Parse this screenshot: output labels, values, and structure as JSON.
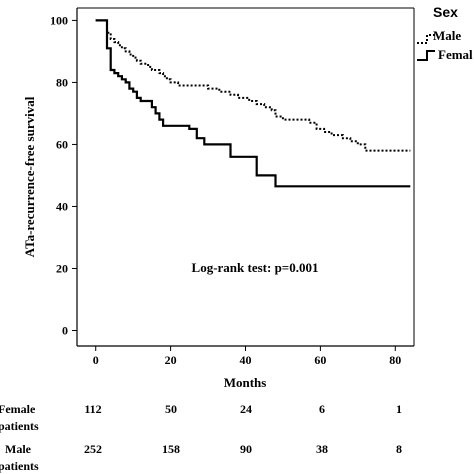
{
  "chart_data": {
    "type": "line",
    "subtype": "kaplan-meier survival curve",
    "xlabel": "Months",
    "ylabel": "ATa-recurrence-free survival",
    "xlim": [
      -5,
      85
    ],
    "ylim": [
      -5,
      104
    ],
    "xticks": [
      "0",
      "20",
      "40",
      "60",
      "80"
    ],
    "yticks": [
      "0",
      "20",
      "40",
      "60",
      "80",
      "100"
    ],
    "annotation": "Log-rank test: p=0.001",
    "legend": {
      "title": "Sex",
      "placement": "top-right outside plot area",
      "entries": [
        "Male",
        "Femal"
      ]
    },
    "series": [
      {
        "name": "Male",
        "style": "dotted",
        "color": "#000000",
        "points": [
          [
            0,
            100
          ],
          [
            3,
            100
          ],
          [
            3,
            96
          ],
          [
            4,
            96
          ],
          [
            4,
            94
          ],
          [
            5,
            94
          ],
          [
            5,
            93
          ],
          [
            6,
            93
          ],
          [
            6,
            92
          ],
          [
            7,
            92
          ],
          [
            7,
            91
          ],
          [
            8,
            91
          ],
          [
            8,
            90
          ],
          [
            9,
            90
          ],
          [
            9,
            89
          ],
          [
            10,
            89
          ],
          [
            10,
            88
          ],
          [
            11,
            88
          ],
          [
            11,
            87
          ],
          [
            12,
            87
          ],
          [
            12,
            86
          ],
          [
            14,
            86
          ],
          [
            14,
            85
          ],
          [
            15,
            85
          ],
          [
            15,
            84
          ],
          [
            17,
            84
          ],
          [
            17,
            83
          ],
          [
            18,
            83
          ],
          [
            18,
            82
          ],
          [
            19,
            82
          ],
          [
            19,
            81
          ],
          [
            20,
            81
          ],
          [
            20,
            80
          ],
          [
            22,
            80
          ],
          [
            22,
            79
          ],
          [
            30,
            79
          ],
          [
            30,
            78
          ],
          [
            33,
            78
          ],
          [
            33,
            77
          ],
          [
            36,
            77
          ],
          [
            36,
            76
          ],
          [
            38,
            76
          ],
          [
            38,
            75
          ],
          [
            41,
            75
          ],
          [
            41,
            74
          ],
          [
            43,
            74
          ],
          [
            43,
            73
          ],
          [
            45,
            73
          ],
          [
            45,
            72
          ],
          [
            47,
            72
          ],
          [
            47,
            71
          ],
          [
            48,
            71
          ],
          [
            48,
            69
          ],
          [
            50,
            69
          ],
          [
            50,
            68
          ],
          [
            57,
            68
          ],
          [
            57,
            67
          ],
          [
            59,
            67
          ],
          [
            59,
            65
          ],
          [
            61,
            65
          ],
          [
            61,
            64
          ],
          [
            63,
            64
          ],
          [
            63,
            63
          ],
          [
            66,
            63
          ],
          [
            66,
            62
          ],
          [
            68,
            62
          ],
          [
            68,
            61
          ],
          [
            70,
            61
          ],
          [
            70,
            60
          ],
          [
            72,
            60
          ],
          [
            72,
            58
          ],
          [
            84,
            58
          ]
        ]
      },
      {
        "name": "Femal",
        "style": "solid",
        "color": "#000000",
        "points": [
          [
            0,
            100
          ],
          [
            3,
            100
          ],
          [
            3,
            91
          ],
          [
            4,
            91
          ],
          [
            4,
            84
          ],
          [
            5,
            84
          ],
          [
            5,
            83
          ],
          [
            6,
            83
          ],
          [
            6,
            82
          ],
          [
            7,
            82
          ],
          [
            7,
            81
          ],
          [
            8,
            81
          ],
          [
            8,
            80
          ],
          [
            9,
            80
          ],
          [
            9,
            78
          ],
          [
            10,
            78
          ],
          [
            10,
            77
          ],
          [
            11,
            77
          ],
          [
            11,
            75
          ],
          [
            12,
            75
          ],
          [
            12,
            74
          ],
          [
            15,
            74
          ],
          [
            15,
            72
          ],
          [
            16,
            72
          ],
          [
            16,
            70
          ],
          [
            17,
            70
          ],
          [
            17,
            68
          ],
          [
            18,
            68
          ],
          [
            18,
            66
          ],
          [
            25,
            66
          ],
          [
            25,
            65
          ],
          [
            27,
            65
          ],
          [
            27,
            62
          ],
          [
            29,
            62
          ],
          [
            29,
            60
          ],
          [
            36,
            60
          ],
          [
            36,
            56
          ],
          [
            43,
            56
          ],
          [
            43,
            50
          ],
          [
            48,
            50
          ],
          [
            48,
            46.5
          ],
          [
            84,
            46.5
          ]
        ]
      }
    ],
    "risk_table": {
      "columns_at_months": [
        0,
        20,
        40,
        60,
        80
      ],
      "rows": [
        {
          "label_line1": "Female",
          "label_line2": "patients",
          "values": [
            "112",
            "50",
            "24",
            "6",
            "1"
          ]
        },
        {
          "label_line1": "Male",
          "label_line2": "patients",
          "values": [
            "252",
            "158",
            "90",
            "38",
            "8"
          ]
        }
      ]
    }
  }
}
